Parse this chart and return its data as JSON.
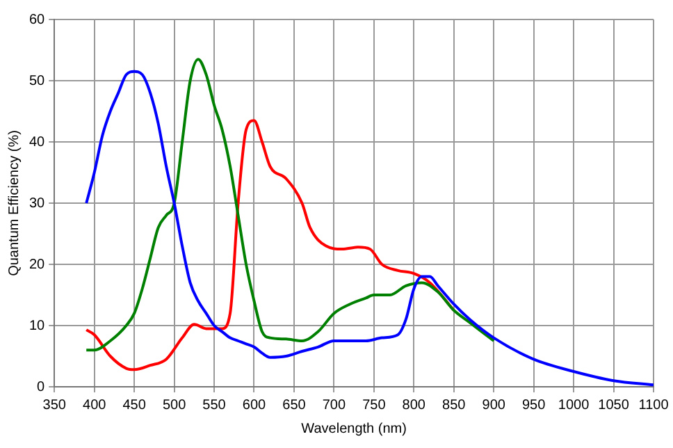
{
  "chart_data": {
    "type": "line",
    "xlabel": "Wavelength (nm)",
    "ylabel": "Quantum Efficiency (%)",
    "xlim": [
      350,
      1100
    ],
    "xticks": [
      350,
      400,
      450,
      500,
      550,
      600,
      650,
      700,
      750,
      800,
      850,
      900,
      950,
      1000,
      1050,
      1100
    ],
    "ylim": [
      0,
      60
    ],
    "yticks": [
      0,
      10,
      20,
      30,
      40,
      50,
      60
    ],
    "grid": true,
    "legend": false,
    "marker": "none",
    "line_style": "solid",
    "series": [
      {
        "color": "#0000ff",
        "x": [
          390,
          400,
          410,
          420,
          430,
          440,
          450,
          460,
          470,
          480,
          490,
          500,
          510,
          520,
          530,
          540,
          550,
          560,
          570,
          580,
          590,
          600,
          610,
          620,
          640,
          660,
          680,
          700,
          720,
          740,
          760,
          780,
          790,
          800,
          810,
          820,
          830,
          850,
          870,
          900,
          950,
          1000,
          1050,
          1100
        ],
        "values": [
          30,
          35,
          41,
          45,
          48,
          51,
          51.5,
          51,
          48,
          43,
          36,
          30,
          23,
          17,
          14,
          12,
          10,
          9,
          8,
          7.5,
          7,
          6.5,
          5.5,
          4.8,
          5,
          5.8,
          6.5,
          7.5,
          7.5,
          7.5,
          8,
          8.5,
          11,
          16,
          18,
          18,
          16.5,
          13.5,
          11,
          8,
          4.5,
          2.5,
          1,
          0.3
        ]
      },
      {
        "color": "#008000",
        "x": [
          390,
          400,
          420,
          440,
          450,
          460,
          470,
          480,
          490,
          500,
          510,
          520,
          530,
          540,
          550,
          560,
          570,
          580,
          590,
          600,
          610,
          620,
          640,
          660,
          680,
          700,
          720,
          740,
          750,
          770,
          790,
          810,
          830,
          850,
          870,
          900
        ],
        "values": [
          6,
          6,
          7.5,
          10,
          12,
          16,
          21,
          26,
          28,
          30,
          40,
          50,
          53.5,
          51,
          46,
          42,
          36,
          28,
          20,
          14,
          9,
          8,
          7.8,
          7.5,
          9,
          12,
          13.5,
          14.5,
          15,
          15,
          16.5,
          17,
          15.5,
          12.5,
          10.5,
          7.5
        ]
      },
      {
        "color": "#ff0000",
        "x": [
          390,
          400,
          420,
          440,
          450,
          470,
          490,
          510,
          525,
          540,
          560,
          570,
          580,
          590,
          600,
          610,
          620,
          640,
          660,
          670,
          690,
          710,
          730,
          745,
          760,
          780,
          800,
          820,
          850
        ],
        "values": [
          9.3,
          8.5,
          5,
          3,
          2.8,
          3.5,
          4.5,
          8,
          10.2,
          9.5,
          9.5,
          12,
          30,
          42,
          43.5,
          40,
          36,
          34,
          30,
          26,
          23,
          22.5,
          22.8,
          22.5,
          20,
          19,
          18.5,
          17,
          12.5
        ]
      }
    ]
  }
}
